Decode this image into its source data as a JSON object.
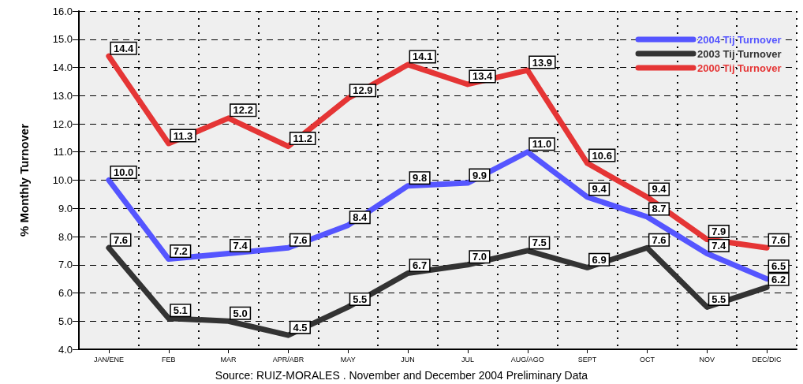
{
  "chart_data": {
    "type": "line",
    "ylabel": "% Monthly Turnover",
    "categories": [
      "JAN/ENE",
      "FEB",
      "MAR",
      "APR/ABR",
      "MAY",
      "JUN",
      "JUL",
      "AUG/AGO",
      "SEPT",
      "OCT",
      "NOV",
      "DEC/DIC"
    ],
    "series": [
      {
        "name": "2004 Tij Turnover",
        "color": "#5555ff",
        "values": [
          10.0,
          7.2,
          7.4,
          7.6,
          8.4,
          9.8,
          9.9,
          11.0,
          9.4,
          8.7,
          7.4,
          6.5
        ],
        "value_labels": [
          "10.0",
          "7.2",
          "7.4",
          "7.6",
          "8.4",
          "9.8",
          "9.9",
          "11.0",
          "9.4",
          "8.7",
          "7.4",
          "6.5"
        ]
      },
      {
        "name": "2003 Tij Turnover",
        "color": "#333333",
        "values": [
          7.6,
          5.1,
          5.0,
          4.5,
          5.5,
          6.7,
          7.0,
          7.5,
          6.9,
          7.6,
          5.5,
          6.2
        ],
        "value_labels": [
          "7.6",
          "5.1",
          "5.0",
          "4.5",
          "5.5",
          "6.7",
          "7.0",
          "7.5",
          "6.9",
          "7.6",
          "5.5",
          "6.2"
        ]
      },
      {
        "name": "2000 Tij Turnover",
        "color": "#e53535",
        "values": [
          14.4,
          11.3,
          12.2,
          11.2,
          12.9,
          14.1,
          13.4,
          13.9,
          10.6,
          9.4,
          7.9,
          7.6
        ],
        "value_labels": [
          "14.4",
          "11.3",
          "12.2",
          "11.2",
          "12.9",
          "14.1",
          "13.4",
          "13.9",
          "10.6",
          "9.4",
          "7.9",
          "7.6"
        ]
      }
    ],
    "ylim": [
      4,
      16
    ],
    "yticks": [
      {
        "value": 4,
        "label": "4.0"
      },
      {
        "value": 5,
        "label": "5.0"
      },
      {
        "value": 6,
        "label": "6.0"
      },
      {
        "value": 7,
        "label": "7.0"
      },
      {
        "value": 8,
        "label": "8.0"
      },
      {
        "value": 9,
        "label": "9.0"
      },
      {
        "value": 10,
        "label": "10.0"
      },
      {
        "value": 11,
        "label": "11.0"
      },
      {
        "value": 12,
        "label": "12.0"
      },
      {
        "value": 13,
        "label": "13.0"
      },
      {
        "value": 14,
        "label": "14.0"
      },
      {
        "value": 15,
        "label": "15.0"
      },
      {
        "value": 16,
        "label": "16.0"
      }
    ],
    "grid": true,
    "legend": "top right",
    "marker": "none",
    "line_style": "solid",
    "annotations": [
      "Source: RUIZ-MORALES . November and December 2004 Preliminary Data"
    ]
  }
}
